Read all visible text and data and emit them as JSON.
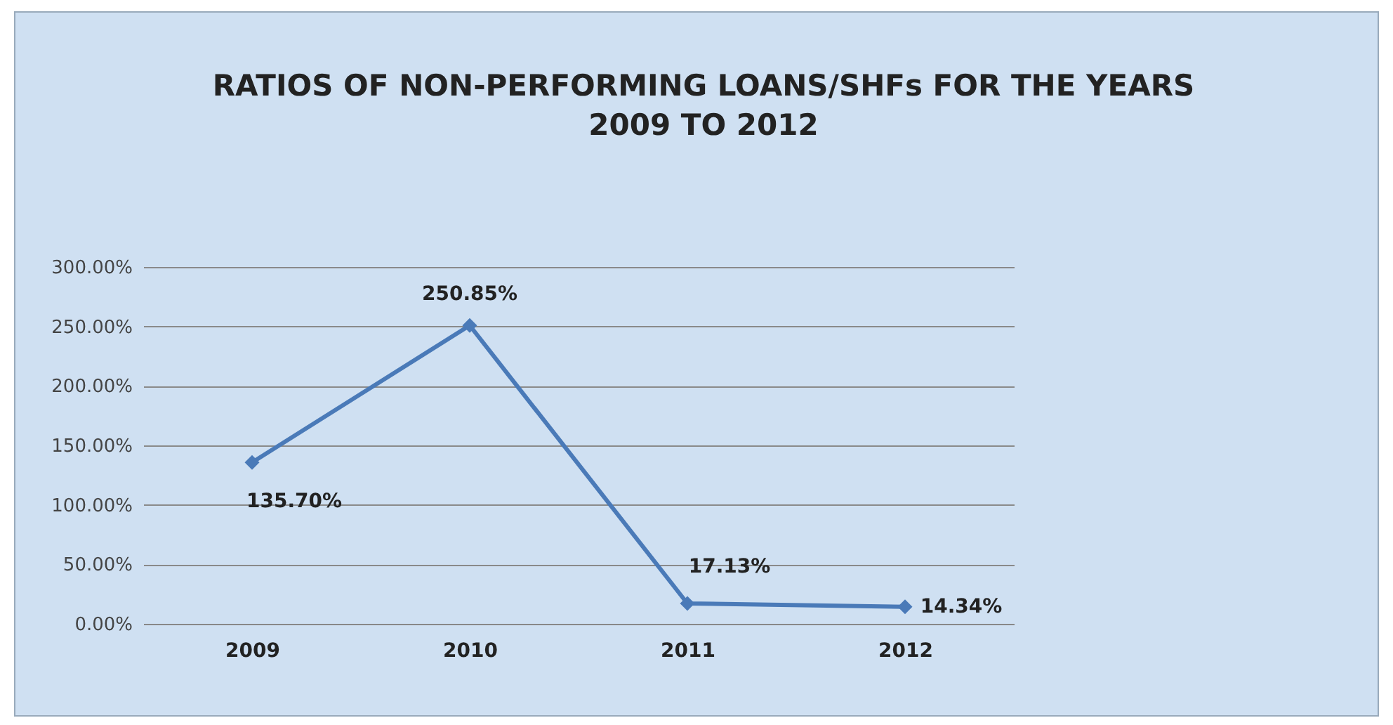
{
  "chart_data": {
    "type": "line",
    "title": "RATIOS OF NON-PERFORMING LOANS/SHFs FOR THE YEARS 2009 TO 2012",
    "categories": [
      "2009",
      "2010",
      "2011",
      "2012"
    ],
    "series": [
      {
        "color": "#4a7ab8",
        "values": [
          135.7,
          250.85,
          17.13,
          14.34
        ],
        "value_labels": [
          "135.70%",
          "250.85%",
          "17.13%",
          "14.34%"
        ]
      }
    ],
    "ylim": [
      0,
      300
    ],
    "yticks": [
      {
        "value": 0,
        "label": "0.00%"
      },
      {
        "value": 50,
        "label": "50.00%"
      },
      {
        "value": 100,
        "label": "100.00%"
      },
      {
        "value": 150,
        "label": "150.00%"
      },
      {
        "value": 200,
        "label": "200.00%"
      },
      {
        "value": 250,
        "label": "250.00%"
      },
      {
        "value": 300,
        "label": "300.00%"
      }
    ],
    "grid": "y",
    "marker": "diamond",
    "line_style": "solid"
  }
}
